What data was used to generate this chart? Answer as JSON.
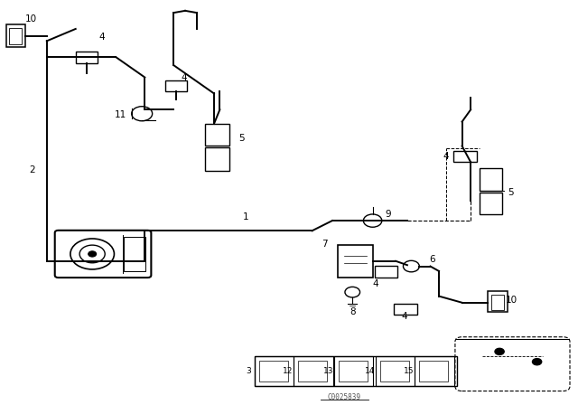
{
  "bg_color": "#ffffff",
  "line_color": "#000000",
  "fig_width": 6.4,
  "fig_height": 4.48,
  "dpi": 100,
  "watermark": "C0025839",
  "lw_main": 1.4,
  "lw_thin": 0.8
}
